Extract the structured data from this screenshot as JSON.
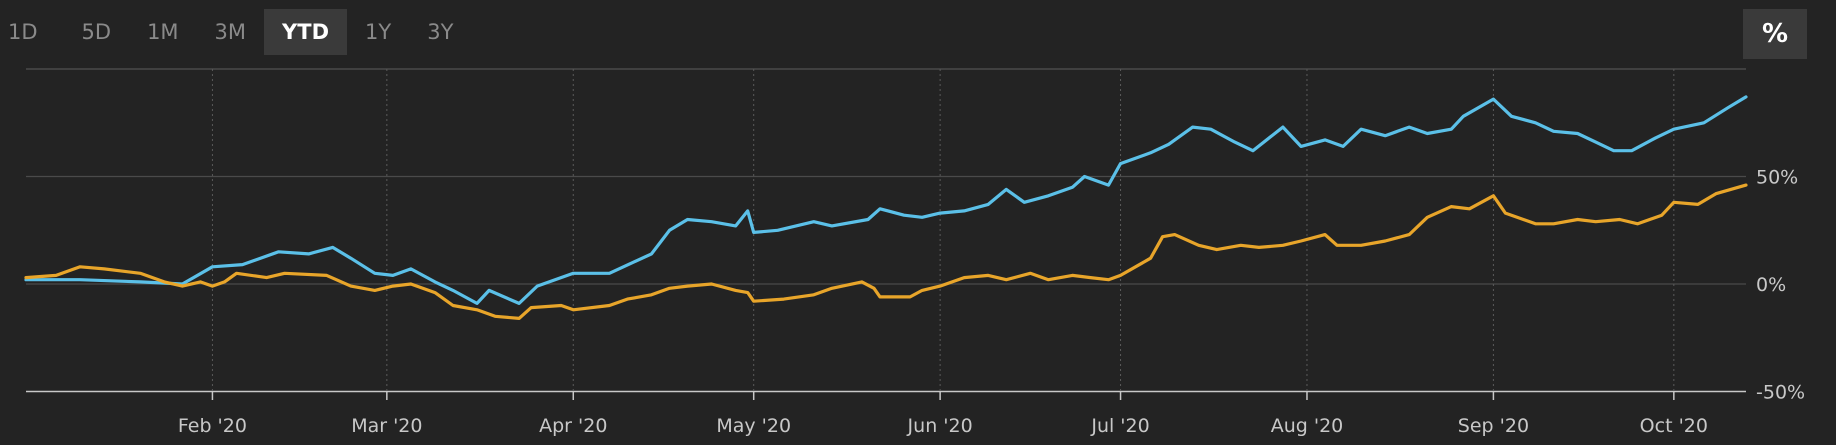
{
  "toolbar": {
    "ranges": [
      "1D",
      "5D",
      "1M",
      "3M",
      "YTD",
      "1Y",
      "3Y"
    ],
    "active": "YTD",
    "percent_label": "%"
  },
  "chart_data": {
    "type": "line",
    "title": "",
    "xlabel": "",
    "ylabel": "",
    "ylim": [
      -50,
      100
    ],
    "xlim": [
      "2020-01-01",
      "2020-10-13"
    ],
    "yticks": [
      {
        "value": 50,
        "label": "50%"
      },
      {
        "value": 0,
        "label": "0%"
      },
      {
        "value": -50,
        "label": "-50%"
      }
    ],
    "xticks": [
      {
        "date": "2020-02-01",
        "label": "Feb '20"
      },
      {
        "date": "2020-03-01",
        "label": "Mar '20"
      },
      {
        "date": "2020-04-01",
        "label": "Apr '20"
      },
      {
        "date": "2020-05-01",
        "label": "May '20"
      },
      {
        "date": "2020-06-01",
        "label": "Jun '20"
      },
      {
        "date": "2020-07-01",
        "label": "Jul '20"
      },
      {
        "date": "2020-08-01",
        "label": "Aug '20"
      },
      {
        "date": "2020-09-01",
        "label": "Sep '20"
      },
      {
        "date": "2020-10-01",
        "label": "Oct '20"
      }
    ],
    "grid": true,
    "series": [
      {
        "color": "#5bc0e8",
        "points": [
          [
            "2020-01-01",
            2
          ],
          [
            "2020-01-10",
            2
          ],
          [
            "2020-01-20",
            1
          ],
          [
            "2020-01-27",
            0
          ],
          [
            "2020-02-01",
            8
          ],
          [
            "2020-02-06",
            9
          ],
          [
            "2020-02-12",
            15
          ],
          [
            "2020-02-17",
            14
          ],
          [
            "2020-02-21",
            17
          ],
          [
            "2020-02-24",
            12
          ],
          [
            "2020-02-28",
            5
          ],
          [
            "2020-03-02",
            4
          ],
          [
            "2020-03-05",
            7
          ],
          [
            "2020-03-09",
            1
          ],
          [
            "2020-03-12",
            -3
          ],
          [
            "2020-03-16",
            -9
          ],
          [
            "2020-03-18",
            -3
          ],
          [
            "2020-03-23",
            -9
          ],
          [
            "2020-03-26",
            -1
          ],
          [
            "2020-04-01",
            5
          ],
          [
            "2020-04-07",
            5
          ],
          [
            "2020-04-14",
            14
          ],
          [
            "2020-04-17",
            25
          ],
          [
            "2020-04-20",
            30
          ],
          [
            "2020-04-24",
            29
          ],
          [
            "2020-04-28",
            27
          ],
          [
            "2020-04-30",
            34
          ],
          [
            "2020-05-01",
            24
          ],
          [
            "2020-05-05",
            25
          ],
          [
            "2020-05-11",
            29
          ],
          [
            "2020-05-14",
            27
          ],
          [
            "2020-05-20",
            30
          ],
          [
            "2020-05-22",
            35
          ],
          [
            "2020-05-26",
            32
          ],
          [
            "2020-05-29",
            31
          ],
          [
            "2020-06-01",
            33
          ],
          [
            "2020-06-05",
            34
          ],
          [
            "2020-06-09",
            37
          ],
          [
            "2020-06-12",
            44
          ],
          [
            "2020-06-15",
            38
          ],
          [
            "2020-06-19",
            41
          ],
          [
            "2020-06-23",
            45
          ],
          [
            "2020-06-25",
            50
          ],
          [
            "2020-06-29",
            46
          ],
          [
            "2020-07-01",
            56
          ],
          [
            "2020-07-06",
            61
          ],
          [
            "2020-07-09",
            65
          ],
          [
            "2020-07-13",
            73
          ],
          [
            "2020-07-16",
            72
          ],
          [
            "2020-07-20",
            66
          ],
          [
            "2020-07-23",
            62
          ],
          [
            "2020-07-28",
            73
          ],
          [
            "2020-07-31",
            64
          ],
          [
            "2020-08-04",
            67
          ],
          [
            "2020-08-07",
            64
          ],
          [
            "2020-08-10",
            72
          ],
          [
            "2020-08-14",
            69
          ],
          [
            "2020-08-18",
            73
          ],
          [
            "2020-08-21",
            70
          ],
          [
            "2020-08-25",
            72
          ],
          [
            "2020-08-27",
            78
          ],
          [
            "2020-09-01",
            86
          ],
          [
            "2020-09-04",
            78
          ],
          [
            "2020-09-08",
            75
          ],
          [
            "2020-09-11",
            71
          ],
          [
            "2020-09-15",
            70
          ],
          [
            "2020-09-18",
            66
          ],
          [
            "2020-09-21",
            62
          ],
          [
            "2020-09-24",
            62
          ],
          [
            "2020-09-28",
            68
          ],
          [
            "2020-10-01",
            72
          ],
          [
            "2020-10-06",
            75
          ],
          [
            "2020-10-10",
            82
          ],
          [
            "2020-10-13",
            87
          ]
        ]
      },
      {
        "color": "#e8a52a",
        "points": [
          [
            "2020-01-01",
            3
          ],
          [
            "2020-01-06",
            4
          ],
          [
            "2020-01-10",
            8
          ],
          [
            "2020-01-14",
            7
          ],
          [
            "2020-01-20",
            5
          ],
          [
            "2020-01-24",
            1
          ],
          [
            "2020-01-27",
            -1
          ],
          [
            "2020-01-30",
            1
          ],
          [
            "2020-02-01",
            -1
          ],
          [
            "2020-02-03",
            1
          ],
          [
            "2020-02-05",
            5
          ],
          [
            "2020-02-10",
            3
          ],
          [
            "2020-02-13",
            5
          ],
          [
            "2020-02-20",
            4
          ],
          [
            "2020-02-24",
            -1
          ],
          [
            "2020-02-28",
            -3
          ],
          [
            "2020-03-02",
            -1
          ],
          [
            "2020-03-05",
            0
          ],
          [
            "2020-03-09",
            -4
          ],
          [
            "2020-03-12",
            -10
          ],
          [
            "2020-03-16",
            -12
          ],
          [
            "2020-03-19",
            -15
          ],
          [
            "2020-03-23",
            -16
          ],
          [
            "2020-03-25",
            -11
          ],
          [
            "2020-03-30",
            -10
          ],
          [
            "2020-04-01",
            -12
          ],
          [
            "2020-04-07",
            -10
          ],
          [
            "2020-04-10",
            -7
          ],
          [
            "2020-04-14",
            -5
          ],
          [
            "2020-04-17",
            -2
          ],
          [
            "2020-04-20",
            -1
          ],
          [
            "2020-04-24",
            0
          ],
          [
            "2020-04-28",
            -3
          ],
          [
            "2020-04-30",
            -4
          ],
          [
            "2020-05-01",
            -8
          ],
          [
            "2020-05-06",
            -7
          ],
          [
            "2020-05-11",
            -5
          ],
          [
            "2020-05-14",
            -2
          ],
          [
            "2020-05-19",
            1
          ],
          [
            "2020-05-21",
            -2
          ],
          [
            "2020-05-22",
            -6
          ],
          [
            "2020-05-27",
            -6
          ],
          [
            "2020-05-29",
            -3
          ],
          [
            "2020-06-01",
            -1
          ],
          [
            "2020-06-05",
            3
          ],
          [
            "2020-06-09",
            4
          ],
          [
            "2020-06-12",
            2
          ],
          [
            "2020-06-16",
            5
          ],
          [
            "2020-06-19",
            2
          ],
          [
            "2020-06-23",
            4
          ],
          [
            "2020-06-26",
            3
          ],
          [
            "2020-06-29",
            2
          ],
          [
            "2020-07-01",
            4
          ],
          [
            "2020-07-06",
            12
          ],
          [
            "2020-07-08",
            22
          ],
          [
            "2020-07-10",
            23
          ],
          [
            "2020-07-14",
            18
          ],
          [
            "2020-07-17",
            16
          ],
          [
            "2020-07-21",
            18
          ],
          [
            "2020-07-24",
            17
          ],
          [
            "2020-07-28",
            18
          ],
          [
            "2020-07-31",
            20
          ],
          [
            "2020-08-04",
            23
          ],
          [
            "2020-08-06",
            18
          ],
          [
            "2020-08-10",
            18
          ],
          [
            "2020-08-14",
            20
          ],
          [
            "2020-08-18",
            23
          ],
          [
            "2020-08-21",
            31
          ],
          [
            "2020-08-25",
            36
          ],
          [
            "2020-08-28",
            35
          ],
          [
            "2020-09-01",
            41
          ],
          [
            "2020-09-03",
            33
          ],
          [
            "2020-09-08",
            28
          ],
          [
            "2020-09-11",
            28
          ],
          [
            "2020-09-15",
            30
          ],
          [
            "2020-09-18",
            29
          ],
          [
            "2020-09-22",
            30
          ],
          [
            "2020-09-25",
            28
          ],
          [
            "2020-09-29",
            32
          ],
          [
            "2020-10-01",
            38
          ],
          [
            "2020-10-05",
            37
          ],
          [
            "2020-10-08",
            42
          ],
          [
            "2020-10-13",
            46
          ]
        ]
      }
    ]
  }
}
